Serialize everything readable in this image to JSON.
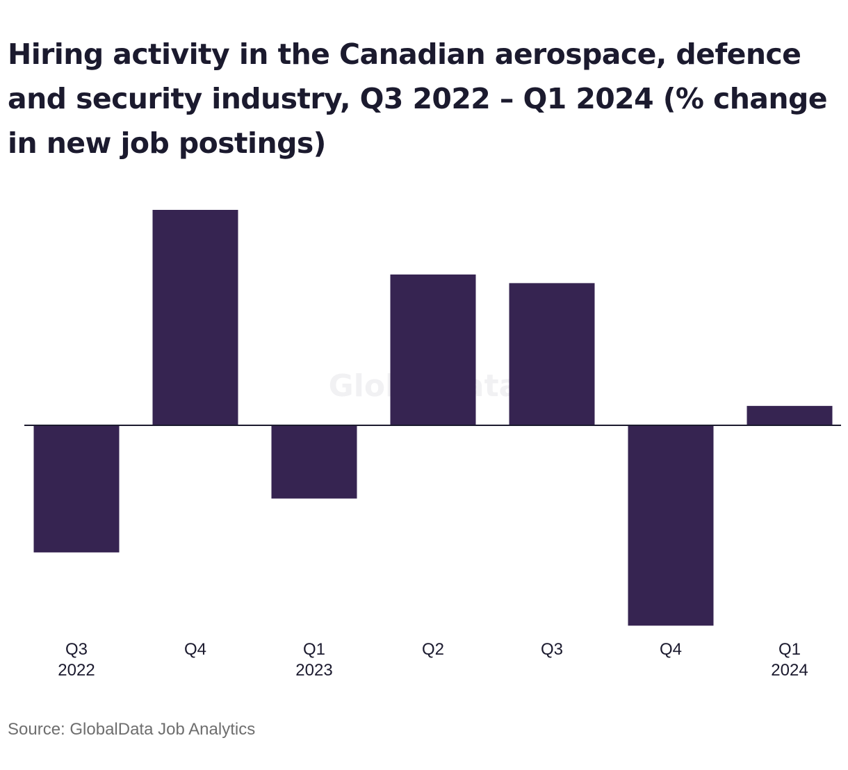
{
  "chart_data": {
    "type": "bar",
    "title": "Hiring activity in the Canadian aerospace, defence and security industry, Q3 2022 – Q1 2024 (% change in new job postings)",
    "categories": [
      [
        "Q3",
        "2022"
      ],
      [
        "Q4"
      ],
      [
        "Q1",
        "2023"
      ],
      [
        "Q2"
      ],
      [
        "Q3"
      ],
      [
        "Q4"
      ],
      [
        "Q1",
        "2024"
      ]
    ],
    "values": [
      -5.9,
      10.0,
      -3.4,
      7.0,
      6.6,
      -9.3,
      0.9
    ],
    "xlabel": "",
    "ylabel": "",
    "ylim": [
      -10,
      10
    ],
    "grid": false,
    "bar_color": "#362451",
    "axis_color": "#1b1a2e",
    "label_color": "#1b1a2e"
  },
  "watermark": "GlobalData",
  "source": "Source: GlobalData Job Analytics"
}
